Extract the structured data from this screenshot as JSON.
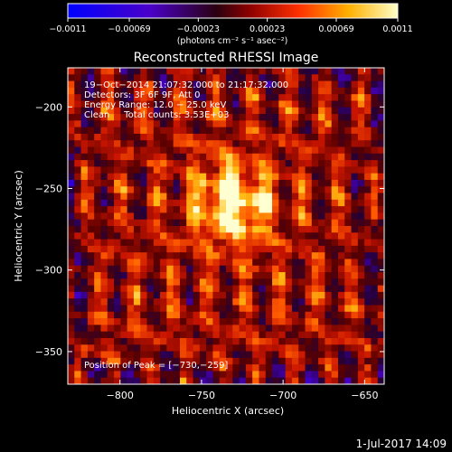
{
  "chart_data": {
    "type": "heatmap",
    "title": "Reconstructed RHESSI Image",
    "xlabel": "Heliocentric X (arcsec)",
    "ylabel": "Heliocentric Y (arcsec)",
    "xlim": [
      -832,
      -638
    ],
    "ylim": [
      -370,
      -176
    ],
    "x_ticks": [
      {
        "value": -800,
        "label": "−800"
      },
      {
        "value": -750,
        "label": "−750"
      },
      {
        "value": -700,
        "label": "−700"
      },
      {
        "value": -650,
        "label": "−650"
      }
    ],
    "y_ticks": [
      {
        "value": -200,
        "label": "−200"
      },
      {
        "value": -250,
        "label": "−250"
      },
      {
        "value": -300,
        "label": "−300"
      },
      {
        "value": -350,
        "label": "−350"
      }
    ],
    "annotations": [
      "19−Oct−2014 21:07:32.000 to 21:17:32.000",
      "Detectors: 3F 6F 9F, Att 0",
      "Energy Range: 12.0 − 25.0 keV",
      "Clean     Total counts: 3.53E+03"
    ],
    "peak_label": "Position of Peak = [−730,−259]",
    "peak": [
      -730,
      -259
    ],
    "colorbar": {
      "min": -0.0011,
      "max": 0.0011,
      "ticks": [
        {
          "value": -0.0011,
          "label": "−0.0011"
        },
        {
          "value": -0.00069,
          "label": "−0.00069"
        },
        {
          "value": -0.00023,
          "label": "−0.00023"
        },
        {
          "value": 0.00023,
          "label": "0.00023"
        },
        {
          "value": 0.00069,
          "label": "0.00069"
        },
        {
          "value": 0.0011,
          "label": "0.0011"
        }
      ],
      "unit_label": "(photons cm⁻² s⁻¹ asec⁻²)"
    },
    "grid": false,
    "legend": "colorbar-top"
  },
  "footer": {
    "date": "1-Jul-2017 14:09"
  }
}
